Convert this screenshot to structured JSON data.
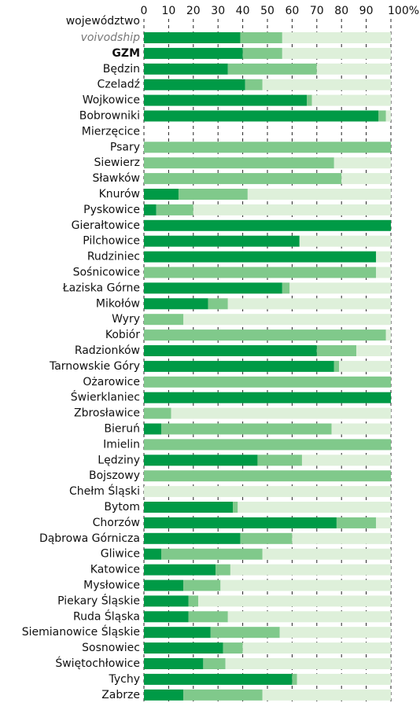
{
  "chart_data": {
    "type": "stacked-barh",
    "y_label": "województwo",
    "categories": [
      "voivodship",
      "GZM",
      "Będzin",
      "Czeladź",
      "Wojkowice",
      "Bobrowniki",
      "Mierzęcice",
      "Psary",
      "Siewierz",
      "Sławków",
      "Knurów",
      "Pyskowice",
      "Gierałtowice",
      "Pilchowice",
      "Rudziniec",
      "Sośnicowice",
      "Łaziska Górne",
      "Mikołów",
      "Wyry",
      "Kobiór",
      "Radzionków",
      "Tarnowskie Góry",
      "Ożarowice",
      "Świerklaniec",
      "Zbrosławice",
      "Bieruń",
      "Imielin",
      "Lędziny",
      "Bojszowy",
      "Chełm Śląski",
      "Bytom",
      "Chorzów",
      "Dąbrowa Górnicza",
      "Gliwice",
      "Katowice",
      "Mysłowice",
      "Piekary Śląskie",
      "Ruda Śląska",
      "Siemianowice Śląskie",
      "Sosnowiec",
      "Świętochłowice",
      "Tychy",
      "Zabrze"
    ],
    "series": [
      {
        "color": "#009a46",
        "values": [
          39,
          40,
          34,
          41,
          66,
          95,
          0,
          0,
          0,
          0,
          14,
          5,
          100,
          63,
          94,
          0,
          56,
          26,
          0,
          0,
          70,
          77,
          0,
          100,
          0,
          7,
          0,
          46,
          0,
          0,
          36,
          78,
          39,
          7,
          29,
          16,
          18,
          18,
          27,
          32,
          24,
          60,
          16
        ]
      },
      {
        "color": "#80c98b",
        "values": [
          17,
          16,
          36,
          7,
          2,
          3,
          0,
          100,
          77,
          80,
          28,
          15,
          0,
          0,
          0,
          94,
          3,
          8,
          16,
          98,
          16,
          2,
          100,
          0,
          11,
          69,
          100,
          18,
          100,
          0,
          2,
          16,
          21,
          41,
          6,
          15,
          4,
          16,
          28,
          8,
          9,
          2,
          32
        ]
      },
      {
        "color": "#def0da",
        "values": [
          44,
          44,
          30,
          52,
          32,
          2,
          0,
          0,
          23,
          20,
          58,
          80,
          0,
          37,
          6,
          6,
          41,
          66,
          84,
          2,
          14,
          21,
          0,
          0,
          89,
          24,
          0,
          36,
          0,
          100,
          62,
          6,
          40,
          52,
          65,
          69,
          78,
          66,
          45,
          60,
          67,
          38,
          52
        ]
      }
    ],
    "xlim": [
      0,
      100
    ],
    "xticks": [
      0,
      10,
      20,
      30,
      40,
      50,
      60,
      70,
      80,
      90,
      {
        "value": 100,
        "label": "100%"
      }
    ],
    "grid": true
  }
}
